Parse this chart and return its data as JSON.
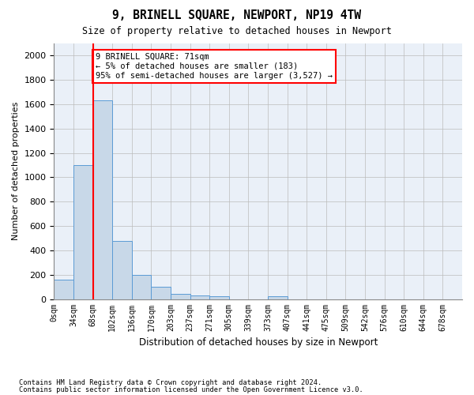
{
  "title": "9, BRINELL SQUARE, NEWPORT, NP19 4TW",
  "subtitle": "Size of property relative to detached houses in Newport",
  "xlabel": "Distribution of detached houses by size in Newport",
  "ylabel": "Number of detached properties",
  "bar_labels": [
    "0sqm",
    "34sqm",
    "68sqm",
    "102sqm",
    "136sqm",
    "170sqm",
    "203sqm",
    "237sqm",
    "271sqm",
    "305sqm",
    "339sqm",
    "373sqm",
    "407sqm",
    "441sqm",
    "475sqm",
    "509sqm",
    "542sqm",
    "576sqm",
    "610sqm",
    "644sqm",
    "678sqm"
  ],
  "bar_values": [
    160,
    1100,
    1630,
    480,
    200,
    100,
    45,
    30,
    20,
    0,
    0,
    20,
    0,
    0,
    0,
    0,
    0,
    0,
    0,
    0,
    0
  ],
  "bar_color": "#c8d8e8",
  "bar_edge_color": "#5b9bd5",
  "red_line_x": 2,
  "ylim": [
    0,
    2100
  ],
  "yticks": [
    0,
    200,
    400,
    600,
    800,
    1000,
    1200,
    1400,
    1600,
    1800,
    2000
  ],
  "annotation_text": "9 BRINELL SQUARE: 71sqm\n← 5% of detached houses are smaller (183)\n95% of semi-detached houses are larger (3,527) →",
  "footer_line1": "Contains HM Land Registry data © Crown copyright and database right 2024.",
  "footer_line2": "Contains public sector information licensed under the Open Government Licence v3.0.",
  "background_color": "#ffffff",
  "axes_bg_color": "#eaf0f8",
  "grid_color": "#bbbbbb"
}
